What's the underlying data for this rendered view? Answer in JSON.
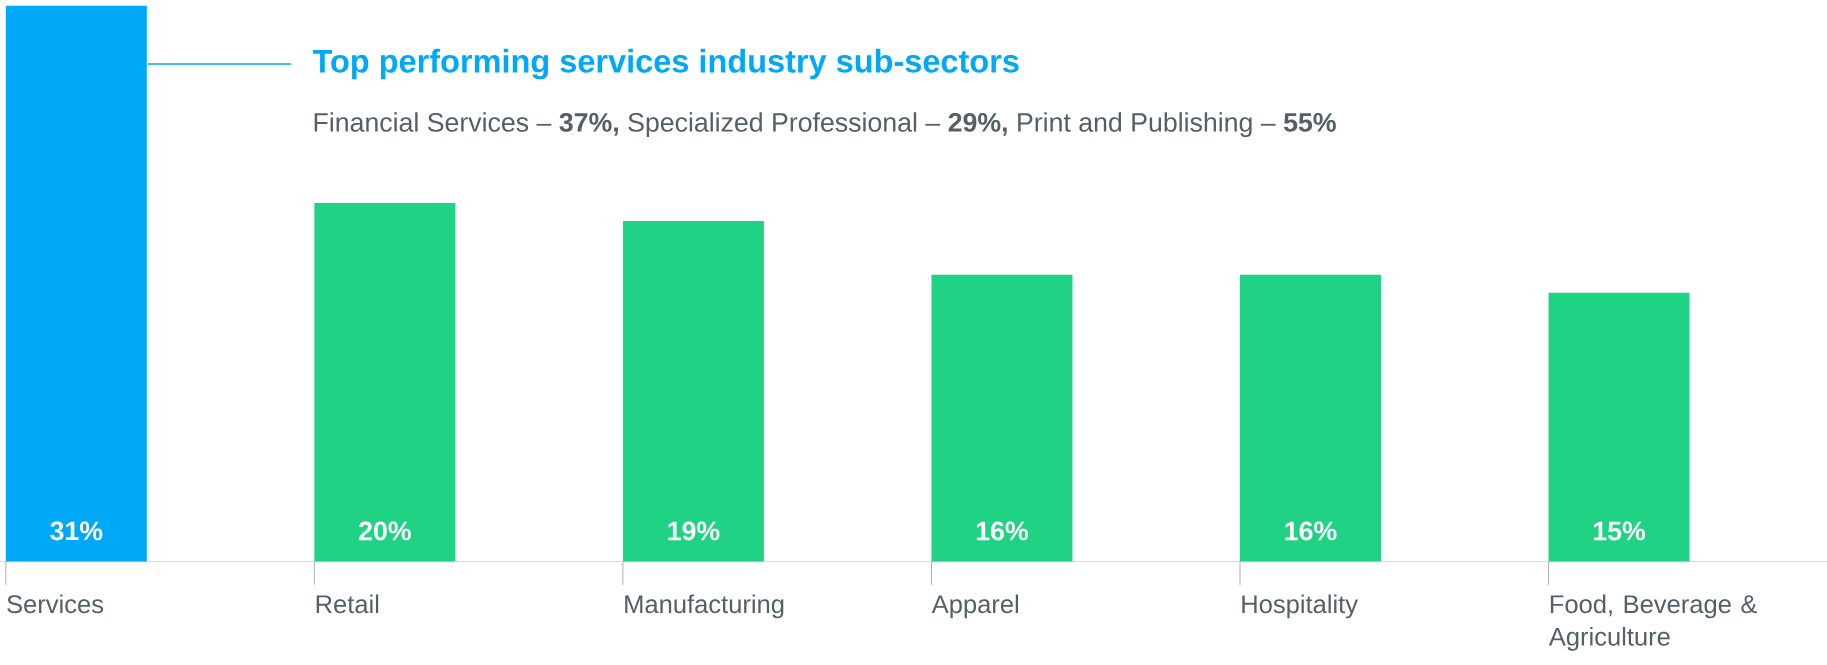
{
  "chart_data": {
    "type": "bar",
    "title": "Top performing services industry sub-sectors",
    "subtitle": "Financial Services – **37%,** Specialized Professional – **29%,** Print and Publishing – **55%**",
    "categories": [
      "Services",
      "Retail",
      "Manufacturing",
      "Apparel",
      "Hospitality",
      "Food, Beverage & Agriculture"
    ],
    "values": [
      31,
      20,
      19,
      16,
      16,
      15
    ],
    "colors": [
      "#00a9f7",
      "#20d384",
      "#20d384",
      "#20d384",
      "#20d384",
      "#20d384"
    ],
    "value_labels": [
      "31%",
      "20%",
      "19%",
      "16%",
      "16%",
      "15%"
    ],
    "ylim": [
      0,
      31
    ]
  }
}
